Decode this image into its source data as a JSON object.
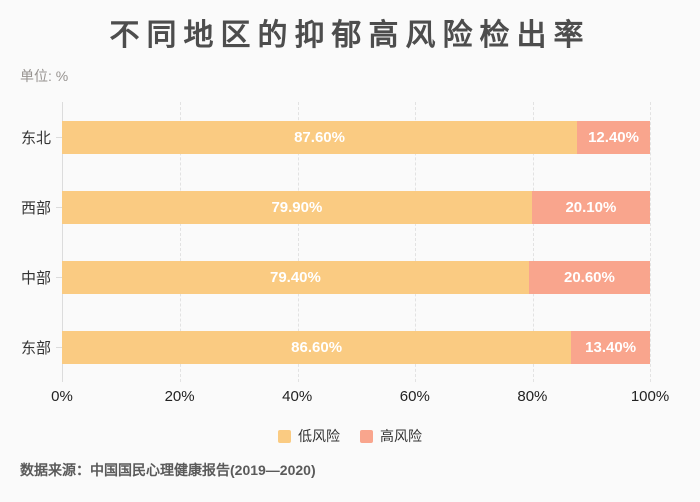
{
  "title": "不同地区的抑郁高风险检出率",
  "unit_label": "单位: %",
  "source": "数据来源：中国国民心理健康报告(2019—2020)",
  "colors": {
    "background": "#FAFAFA",
    "low_risk": "#FACB82",
    "high_risk": "#F9A58D",
    "title_text": "#4D4D4D",
    "axis_line": "#DCDCDC",
    "grid_dashed": "#E2E2E2",
    "bar_value_text": "#FFFFFF"
  },
  "legend": [
    {
      "label": "低风险",
      "color": "#FACB82"
    },
    {
      "label": "高风险",
      "color": "#F9A58D"
    }
  ],
  "x_axis": {
    "ticks": [
      "0%",
      "20%",
      "40%",
      "60%",
      "80%",
      "100%"
    ],
    "min": 0,
    "max": 100
  },
  "chart_data": {
    "type": "bar",
    "orientation": "horizontal",
    "stacked": true,
    "title": "不同地区的抑郁高风险检出率",
    "unit": "%",
    "categories": [
      "东北",
      "西部",
      "中部",
      "东部"
    ],
    "series": [
      {
        "name": "低风险",
        "color": "#FACB82",
        "values": [
          87.6,
          79.9,
          79.4,
          86.6
        ],
        "labels": [
          "87.60%",
          "79.90%",
          "79.40%",
          "86.60%"
        ]
      },
      {
        "name": "高风险",
        "color": "#F9A58D",
        "values": [
          12.4,
          20.1,
          20.6,
          13.4
        ],
        "labels": [
          "12.40%",
          "20.10%",
          "20.60%",
          "13.40%"
        ]
      }
    ],
    "xlim": [
      0,
      100
    ],
    "grid": "dashed-vertical",
    "legend_position": "bottom"
  }
}
